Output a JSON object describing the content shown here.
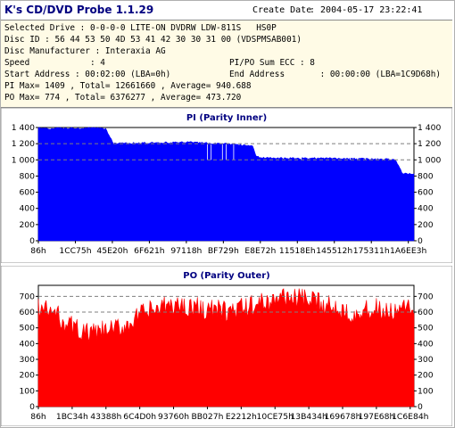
{
  "app": {
    "title": "K's CD/DVD Probe 1.1.29"
  },
  "header": {
    "create_date_label": "Create Date",
    "create_date_value": ":  2004-05-17 23:22:41"
  },
  "info": {
    "selected_drive": "Selected Drive : 0-0-0-0 LITE-ON DVDRW LDW-811S   HS0P",
    "disc_id": "Disc ID : 56 44 53 50 4D 53 41 42 30 30 31 00 (VDSPMSAB001)",
    "disc_manufacturer": "Disc Manufacturer : Interaxia AG",
    "speed": "Speed            : 4",
    "pipo_ecc": "PI/PO Sum ECC : 8",
    "start_address": "Start Address : 00:02:00 (LBA=0h)",
    "end_address": "End Address       : 00:00:00 (LBA=1C9D68h)",
    "pi_summary": "PI Max= 1409 , Total= 12661660 , Average= 940.688",
    "po_summary": "PO Max= 774 , Total= 6376277 , Average= 473.720"
  },
  "chart_data": [
    {
      "type": "area",
      "title": "PI (Parity Inner)",
      "color": "#0000ff",
      "ylim": [
        0,
        1400
      ],
      "yticks": [
        "0",
        "200",
        "400",
        "600",
        "800",
        "1 000",
        "1 200",
        "1 400"
      ],
      "xticks": [
        "86h",
        "1CC75h",
        "45E20h",
        "6F621h",
        "97118h",
        "BF729h",
        "E8E72h",
        "11518Eh",
        "145512h",
        "175311h",
        "1A6EE3h"
      ],
      "grid": "dashed horizontal at 1200 and 1000",
      "legend": "none",
      "x": [
        0.0,
        0.02,
        0.03,
        0.05,
        0.06,
        0.07,
        0.08,
        0.09,
        0.1,
        0.12,
        0.13,
        0.14,
        0.15,
        0.16,
        0.17,
        0.18,
        0.2,
        0.24,
        0.28,
        0.32,
        0.36,
        0.4,
        0.44,
        0.46,
        0.48,
        0.5,
        0.51,
        0.52,
        0.53,
        0.54,
        0.55,
        0.56,
        0.57,
        0.58,
        0.6,
        0.65,
        0.7,
        0.75,
        0.8,
        0.82,
        0.85,
        0.88,
        0.9,
        0.95,
        0.97,
        1.0
      ],
      "y": [
        1400,
        1390,
        1380,
        1395,
        1400,
        1385,
        1390,
        1395,
        1390,
        1385,
        1390,
        1395,
        1400,
        1390,
        1395,
        1380,
        1200,
        1205,
        1210,
        1210,
        1215,
        1220,
        1210,
        1205,
        1200,
        1200,
        1190,
        1190,
        1190,
        1185,
        1180,
        1180,
        1180,
        1040,
        1025,
        1020,
        1020,
        1020,
        1020,
        1015,
        1015,
        1010,
        1010,
        1005,
        830,
        830
      ]
    },
    {
      "type": "area",
      "title": "PO (Parity Outer)",
      "color": "#ff0000",
      "ylim": [
        0,
        770
      ],
      "yticks": [
        "0",
        "100",
        "200",
        "300",
        "400",
        "500",
        "600",
        "700"
      ],
      "xticks": [
        "86h",
        "1BC34h",
        "43388h",
        "6C4D0h",
        "93760h",
        "BB027h",
        "E2212h",
        "10CE75h",
        "13B434h",
        "169678h",
        "197E68h",
        "1C6E84h"
      ],
      "grid": "dashed horizontal at 700 and 600",
      "legend": "none",
      "x": [
        0.0,
        0.02,
        0.04,
        0.06,
        0.08,
        0.1,
        0.12,
        0.14,
        0.16,
        0.18,
        0.2,
        0.22,
        0.24,
        0.26,
        0.28,
        0.3,
        0.32,
        0.34,
        0.36,
        0.38,
        0.4,
        0.42,
        0.44,
        0.46,
        0.48,
        0.5,
        0.52,
        0.54,
        0.56,
        0.58,
        0.6,
        0.62,
        0.64,
        0.66,
        0.68,
        0.7,
        0.72,
        0.74,
        0.76,
        0.78,
        0.8,
        0.82,
        0.84,
        0.86,
        0.88,
        0.9,
        0.92,
        0.94,
        0.96,
        0.98,
        1.0
      ],
      "y": [
        630,
        610,
        600,
        560,
        520,
        500,
        470,
        460,
        470,
        480,
        490,
        500,
        530,
        560,
        590,
        610,
        620,
        635,
        645,
        640,
        640,
        630,
        620,
        615,
        610,
        605,
        610,
        620,
        630,
        650,
        660,
        670,
        690,
        700,
        695,
        680,
        670,
        660,
        650,
        640,
        620,
        610,
        600,
        600,
        610,
        620,
        600,
        590,
        600,
        620,
        630
      ]
    }
  ]
}
